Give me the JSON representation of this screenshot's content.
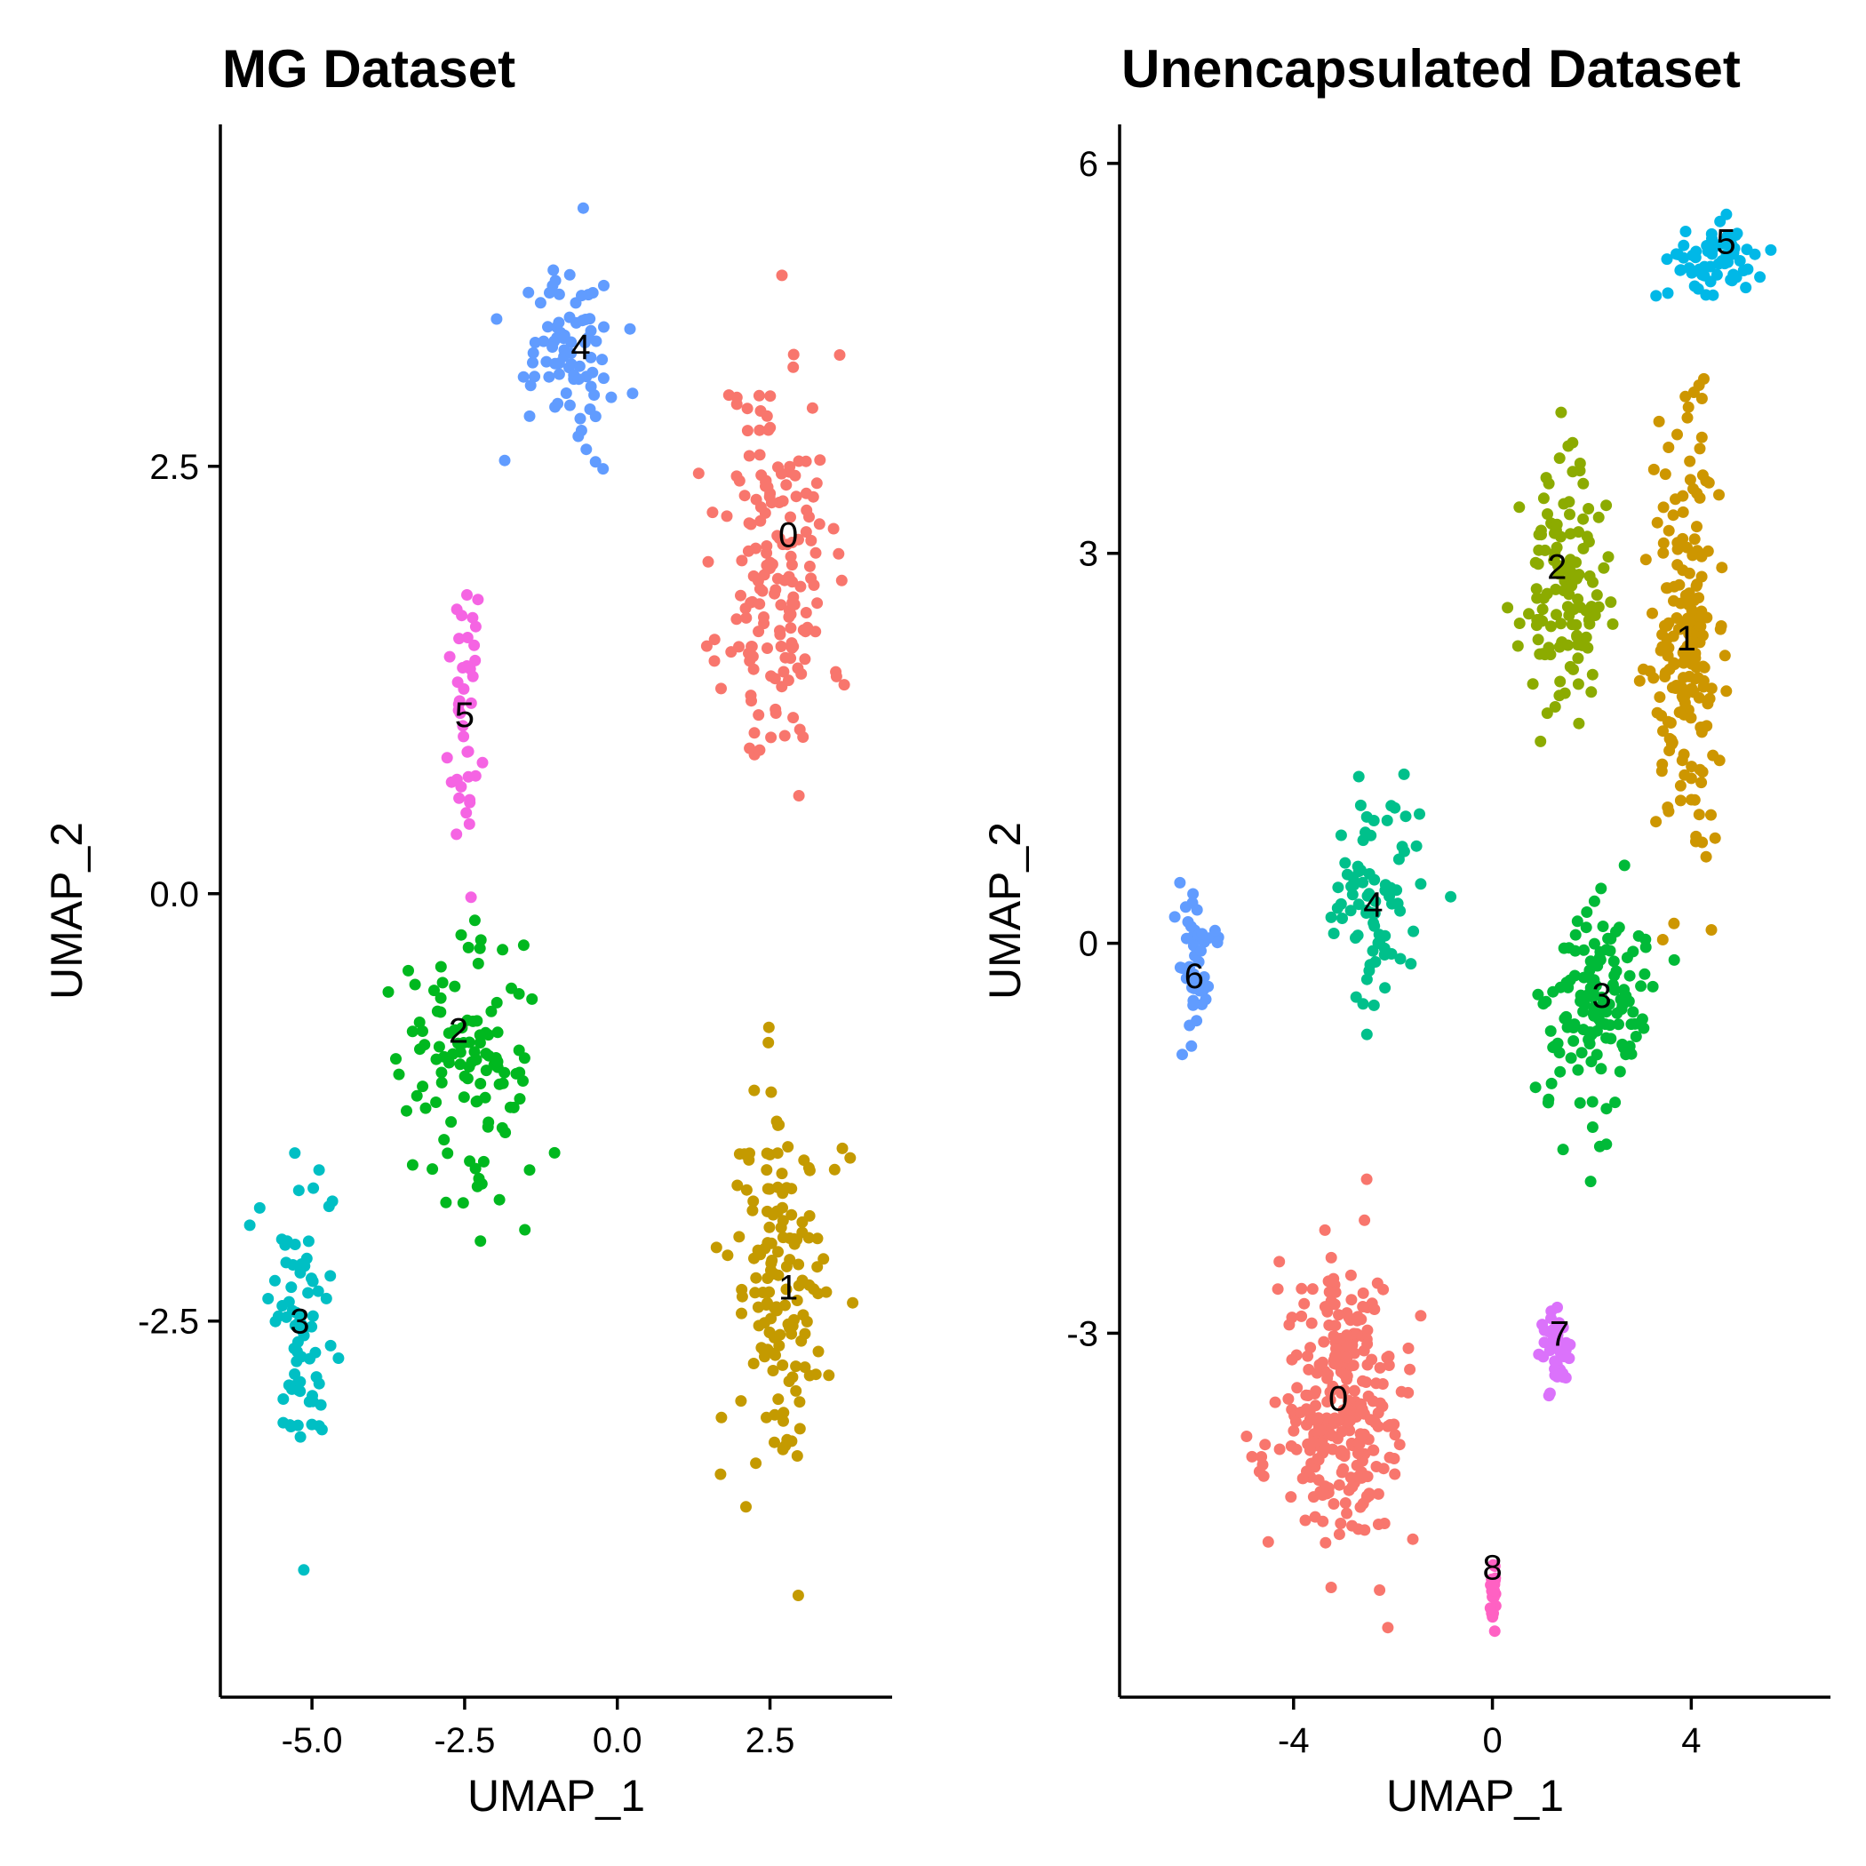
{
  "palette": {
    "0": "#F8766D",
    "1": "#C49A00",
    "2": "#00B81F",
    "3": "#00BFC4",
    "4": "#619CFF",
    "5": "#F564E3",
    "6": "#619CFF",
    "7": "#DB72FB",
    "8": "#FF61C3",
    "1b": "#CD9600",
    "2b": "#8CAB00",
    "3b": "#00BA38",
    "4b": "#00C08B",
    "5b": "#00B8E7"
  },
  "chart_data": [
    {
      "type": "scatter",
      "title": "MG Dataset",
      "xlabel": "UMAP_1",
      "ylabel": "UMAP_2",
      "xlim": [
        -6.5,
        4.5
      ],
      "ylim": [
        -4.7,
        4.5
      ],
      "xticks": [
        -5.0,
        -2.5,
        0.0,
        2.5
      ],
      "xtick_labels": [
        "-5.0",
        "-2.5",
        "0.0",
        "2.5"
      ],
      "yticks": [
        -2.5,
        0.0,
        2.5
      ],
      "ytick_labels": [
        "-2.5",
        "0.0",
        "2.5"
      ],
      "grid": false,
      "legend": "none",
      "clusters": [
        {
          "name": "0",
          "color": "#F8766D",
          "label_pos": [
            2.8,
            2.1
          ],
          "center": [
            2.6,
            1.9
          ],
          "spread": [
            1.0,
            1.4
          ],
          "n": 170,
          "seed": 11
        },
        {
          "name": "1",
          "color": "#C49A00",
          "label_pos": [
            2.8,
            -2.3
          ],
          "center": [
            2.7,
            -2.3
          ],
          "spread": [
            0.9,
            1.3
          ],
          "n": 150,
          "seed": 12
        },
        {
          "name": "2",
          "color": "#00B81F",
          "label_pos": [
            -2.6,
            -0.8
          ],
          "center": [
            -2.4,
            -1.0
          ],
          "spread": [
            1.3,
            0.9
          ],
          "n": 110,
          "seed": 13
        },
        {
          "name": "3",
          "color": "#00BFC4",
          "label_pos": [
            -5.2,
            -2.5
          ],
          "center": [
            -5.1,
            -2.5
          ],
          "spread": [
            0.7,
            1.0
          ],
          "n": 75,
          "seed": 14
        },
        {
          "name": "4",
          "color": "#619CFF",
          "label_pos": [
            -0.6,
            3.2
          ],
          "center": [
            -0.7,
            3.2
          ],
          "spread": [
            0.9,
            0.7
          ],
          "n": 80,
          "seed": 15
        },
        {
          "name": "5",
          "color": "#F564E3",
          "label_pos": [
            -2.5,
            1.05
          ],
          "center": [
            -2.5,
            1.0
          ],
          "spread": [
            0.3,
            0.9
          ],
          "n": 40,
          "seed": 16
        }
      ]
    },
    {
      "type": "scatter",
      "title": "Unencapsulated Dataset",
      "xlabel": "UMAP_1",
      "ylabel": "UMAP_2",
      "xlim": [
        -7.5,
        6.8
      ],
      "ylim": [
        -5.8,
        6.3
      ],
      "xticks": [
        -4,
        0,
        4
      ],
      "xtick_labels": [
        "-4",
        "0",
        "4"
      ],
      "yticks": [
        -3,
        0,
        3,
        6
      ],
      "ytick_labels": [
        "-3",
        "0",
        "3",
        "6"
      ],
      "grid": false,
      "legend": "none",
      "clusters": [
        {
          "name": "0",
          "color": "#F8766D",
          "label_pos": [
            -3.1,
            -3.5
          ],
          "center": [
            -3.0,
            -3.6
          ],
          "spread": [
            1.4,
            1.2
          ],
          "n": 280,
          "seed": 21
        },
        {
          "name": "1",
          "color": "#CD9600",
          "label_pos": [
            3.9,
            2.35
          ],
          "center": [
            3.9,
            2.3
          ],
          "spread": [
            0.7,
            1.8
          ],
          "n": 190,
          "seed": 22
        },
        {
          "name": "2",
          "color": "#8CAB00",
          "label_pos": [
            1.3,
            2.9
          ],
          "center": [
            1.4,
            2.7
          ],
          "spread": [
            0.9,
            1.0
          ],
          "n": 130,
          "seed": 23
        },
        {
          "name": "3",
          "color": "#00BA38",
          "label_pos": [
            2.2,
            -0.4
          ],
          "center": [
            2.0,
            -0.5
          ],
          "spread": [
            1.2,
            1.0
          ],
          "n": 140,
          "seed": 24
        },
        {
          "name": "4",
          "color": "#00C08B",
          "label_pos": [
            -2.4,
            0.3
          ],
          "center": [
            -2.3,
            0.3
          ],
          "spread": [
            1.0,
            0.8
          ],
          "n": 80,
          "seed": 25
        },
        {
          "name": "5",
          "color": "#00B8E7",
          "label_pos": [
            4.7,
            5.4
          ],
          "center": [
            4.5,
            5.3
          ],
          "spread": [
            1.1,
            0.35
          ],
          "n": 70,
          "seed": 26
        },
        {
          "name": "6",
          "color": "#619CFF",
          "label_pos": [
            -6.0,
            -0.25
          ],
          "center": [
            -6.0,
            -0.1
          ],
          "spread": [
            0.4,
            0.7
          ],
          "n": 50,
          "seed": 27
        },
        {
          "name": "7",
          "color": "#DB72FB",
          "label_pos": [
            1.35,
            -3.0
          ],
          "center": [
            1.3,
            -3.1
          ],
          "spread": [
            0.35,
            0.4
          ],
          "n": 40,
          "seed": 28
        },
        {
          "name": "8",
          "color": "#FF61C3",
          "label_pos": [
            0.0,
            -4.8
          ],
          "center": [
            0.0,
            -5.0
          ],
          "spread": [
            0.1,
            0.25
          ],
          "n": 20,
          "seed": 29
        }
      ]
    }
  ]
}
